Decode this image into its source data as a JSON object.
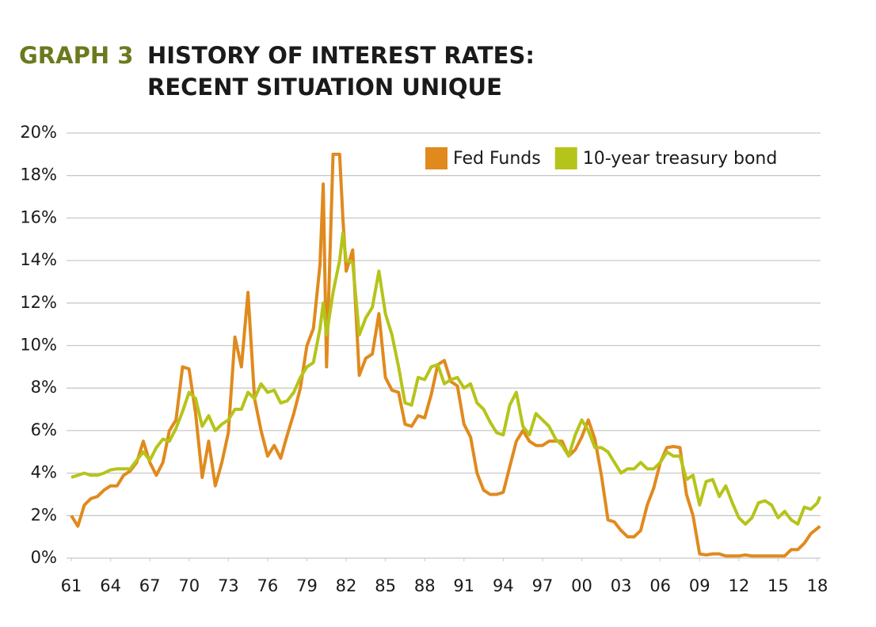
{
  "chart_data": {
    "type": "line",
    "label": "GRAPH 3",
    "title": [
      "HISTORY OF INTEREST RATES:",
      "RECENT SITUATION UNIQUE"
    ],
    "x": [
      1961,
      1961.5,
      1962,
      1962.5,
      1963,
      1963.5,
      1964,
      1964.5,
      1965,
      1965.5,
      1966,
      1966.5,
      1967,
      1967.5,
      1968,
      1968.5,
      1969,
      1969.5,
      1970,
      1970.5,
      1971,
      1971.5,
      1972,
      1972.5,
      1973,
      1973.5,
      1974,
      1974.5,
      1975,
      1975.5,
      1976,
      1976.5,
      1977,
      1977.5,
      1978,
      1978.5,
      1979,
      1979.5,
      1980,
      1980.25,
      1980.5,
      1981,
      1981.5,
      1981.75,
      1982,
      1982.5,
      1983,
      1983.5,
      1984,
      1984.5,
      1985,
      1985.5,
      1986,
      1986.5,
      1987,
      1987.5,
      1988,
      1988.5,
      1989,
      1989.5,
      1990,
      1990.5,
      1991,
      1991.5,
      1992,
      1992.5,
      1993,
      1993.5,
      1994,
      1994.5,
      1995,
      1995.5,
      1996,
      1996.5,
      1997,
      1997.5,
      1998,
      1998.5,
      1999,
      1999.5,
      2000,
      2000.5,
      2001,
      2001.5,
      2002,
      2002.5,
      2003,
      2003.5,
      2004,
      2004.5,
      2005,
      2005.5,
      2006,
      2006.5,
      2007,
      2007.5,
      2008,
      2008.5,
      2009,
      2009.5,
      2010,
      2010.5,
      2011,
      2011.5,
      2012,
      2012.5,
      2013,
      2013.5,
      2014,
      2014.5,
      2015,
      2015.5,
      2016,
      2016.5,
      2017,
      2017.5,
      2018,
      2018.2
    ],
    "series": [
      {
        "name": "Fed Funds",
        "color": "#e08a1e",
        "values": [
          2.0,
          1.5,
          2.5,
          2.8,
          2.9,
          3.2,
          3.4,
          3.4,
          3.9,
          4.1,
          4.5,
          5.5,
          4.5,
          3.9,
          4.5,
          6.0,
          6.5,
          9.0,
          8.9,
          6.8,
          3.8,
          5.5,
          3.4,
          4.5,
          5.9,
          10.4,
          9.0,
          12.5,
          7.5,
          6.0,
          4.8,
          5.3,
          4.7,
          5.8,
          6.8,
          8.0,
          10.0,
          10.8,
          13.8,
          17.6,
          9.0,
          19.0,
          19.0,
          16.0,
          13.5,
          14.5,
          8.6,
          9.4,
          9.6,
          11.5,
          8.5,
          7.9,
          7.8,
          6.3,
          6.2,
          6.7,
          6.6,
          7.7,
          9.1,
          9.3,
          8.3,
          8.1,
          6.3,
          5.7,
          4.0,
          3.2,
          3.0,
          3.0,
          3.1,
          4.3,
          5.5,
          6.0,
          5.5,
          5.3,
          5.3,
          5.5,
          5.5,
          5.5,
          4.8,
          5.1,
          5.7,
          6.5,
          5.6,
          3.9,
          1.8,
          1.7,
          1.3,
          1.0,
          1.0,
          1.3,
          2.5,
          3.3,
          4.5,
          5.2,
          5.25,
          5.2,
          3.0,
          2.0,
          0.2,
          0.15,
          0.2,
          0.2,
          0.1,
          0.1,
          0.1,
          0.15,
          0.1,
          0.1,
          0.1,
          0.1,
          0.1,
          0.1,
          0.4,
          0.4,
          0.7,
          1.15,
          1.4,
          1.5
        ]
      },
      {
        "name": "10-year treasury bond",
        "color": "#b5c41a",
        "values": [
          3.8,
          3.9,
          4.0,
          3.9,
          3.9,
          4.0,
          4.15,
          4.2,
          4.2,
          4.2,
          4.6,
          5.0,
          4.6,
          5.2,
          5.6,
          5.5,
          6.1,
          6.9,
          7.8,
          7.5,
          6.2,
          6.7,
          6.0,
          6.3,
          6.5,
          7.0,
          7.0,
          7.8,
          7.5,
          8.2,
          7.8,
          7.9,
          7.3,
          7.4,
          7.8,
          8.5,
          9.0,
          9.2,
          10.8,
          12.0,
          10.5,
          12.5,
          14.0,
          15.3,
          14.0,
          13.9,
          10.5,
          11.3,
          11.8,
          13.5,
          11.5,
          10.5,
          9.0,
          7.3,
          7.2,
          8.5,
          8.4,
          9.0,
          9.1,
          8.2,
          8.4,
          8.5,
          8.0,
          8.2,
          7.3,
          7.0,
          6.4,
          5.9,
          5.8,
          7.2,
          7.8,
          6.2,
          5.8,
          6.8,
          6.5,
          6.2,
          5.6,
          5.3,
          4.8,
          5.8,
          6.5,
          6.0,
          5.2,
          5.2,
          5.0,
          4.5,
          4.0,
          4.2,
          4.2,
          4.5,
          4.2,
          4.2,
          4.5,
          5.0,
          4.8,
          4.8,
          3.7,
          3.9,
          2.5,
          3.6,
          3.7,
          2.9,
          3.4,
          2.6,
          1.9,
          1.6,
          1.9,
          2.6,
          2.7,
          2.5,
          1.9,
          2.2,
          1.8,
          1.6,
          2.4,
          2.3,
          2.6,
          2.9
        ]
      }
    ],
    "xlim": [
      1961,
      2018
    ],
    "xticks": [
      {
        "value": 1961,
        "label": "61"
      },
      {
        "value": 1964,
        "label": "64"
      },
      {
        "value": 1967,
        "label": "67"
      },
      {
        "value": 1970,
        "label": "70"
      },
      {
        "value": 1973,
        "label": "73"
      },
      {
        "value": 1976,
        "label": "76"
      },
      {
        "value": 1979,
        "label": "79"
      },
      {
        "value": 1982,
        "label": "82"
      },
      {
        "value": 1985,
        "label": "85"
      },
      {
        "value": 1988,
        "label": "88"
      },
      {
        "value": 1991,
        "label": "91"
      },
      {
        "value": 1994,
        "label": "94"
      },
      {
        "value": 1997,
        "label": "97"
      },
      {
        "value": 2000,
        "label": "00"
      },
      {
        "value": 2003,
        "label": "03"
      },
      {
        "value": 2006,
        "label": "06"
      },
      {
        "value": 2009,
        "label": "09"
      },
      {
        "value": 2012,
        "label": "12"
      },
      {
        "value": 2015,
        "label": "15"
      },
      {
        "value": 2018,
        "label": "18"
      }
    ],
    "ylim": [
      0,
      20
    ],
    "yticks": [
      {
        "value": 0,
        "label": "0%"
      },
      {
        "value": 2,
        "label": "2%"
      },
      {
        "value": 4,
        "label": "4%"
      },
      {
        "value": 6,
        "label": "6%"
      },
      {
        "value": 8,
        "label": "8%"
      },
      {
        "value": 10,
        "label": "10%"
      },
      {
        "value": 12,
        "label": "12%"
      },
      {
        "value": 14,
        "label": "14%"
      },
      {
        "value": 16,
        "label": "16%"
      },
      {
        "value": 18,
        "label": "18%"
      },
      {
        "value": 20,
        "label": "20%"
      }
    ],
    "grid": true,
    "legend": "top-right"
  }
}
